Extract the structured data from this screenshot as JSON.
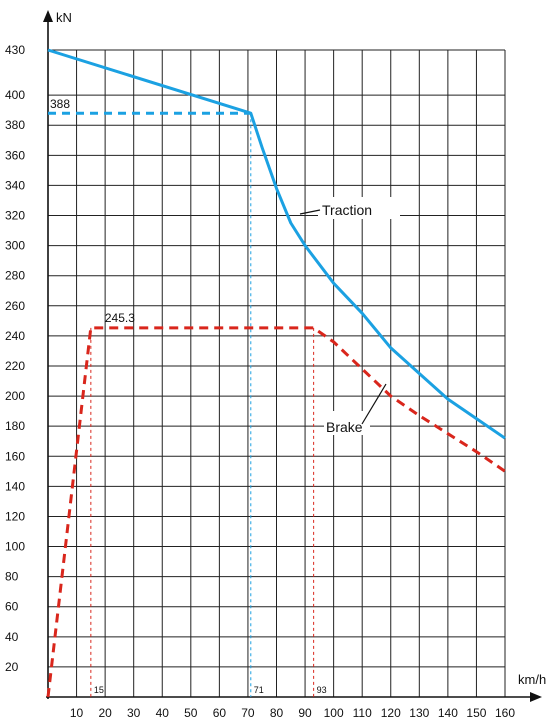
{
  "chart_data": {
    "type": "line",
    "y_unit": "kN",
    "x_unit": "km/h",
    "xlim": [
      0,
      160
    ],
    "ylim": [
      0,
      430
    ],
    "x_ticks": [
      10,
      20,
      30,
      40,
      50,
      60,
      70,
      80,
      90,
      100,
      110,
      120,
      130,
      140,
      150,
      160
    ],
    "y_ticks": [
      20,
      40,
      60,
      80,
      100,
      120,
      140,
      160,
      180,
      200,
      220,
      240,
      260,
      280,
      300,
      320,
      340,
      360,
      380,
      400,
      430
    ],
    "grid": true,
    "series": [
      {
        "name": "Traction",
        "color": "#1BA1E2",
        "points": [
          [
            0,
            430
          ],
          [
            71,
            388
          ],
          [
            75,
            365
          ],
          [
            80,
            338
          ],
          [
            85,
            315
          ],
          [
            90,
            300
          ],
          [
            100,
            275
          ],
          [
            110,
            255
          ],
          [
            120,
            232
          ],
          [
            130,
            215
          ],
          [
            140,
            198
          ],
          [
            150,
            185
          ],
          [
            160,
            172
          ]
        ]
      },
      {
        "name": "Brake",
        "color": "#D9261C",
        "points": [
          [
            0,
            0
          ],
          [
            15,
            245.3
          ],
          [
            93,
            245.3
          ],
          [
            100,
            236
          ],
          [
            110,
            218
          ],
          [
            120,
            200
          ],
          [
            130,
            187
          ],
          [
            140,
            175
          ],
          [
            150,
            163
          ],
          [
            160,
            150
          ]
        ]
      }
    ],
    "reference_lines": [
      {
        "color": "#1BA1E2",
        "y": 388,
        "x": 71,
        "y_label": "388",
        "x_label": "71"
      },
      {
        "color": "#D9261C",
        "y": 245.3,
        "x": 15,
        "y_label": "245.3",
        "x_label": "15"
      },
      {
        "color": "#D9261C",
        "y": 245.3,
        "x": 93,
        "x_label": "93"
      }
    ],
    "annotations": [
      {
        "text": "Traction",
        "series": "Traction",
        "points_at": [
          87,
          312
        ]
      },
      {
        "text": "Brake",
        "series": "Brake",
        "points_at": [
          120,
          200
        ]
      }
    ]
  }
}
